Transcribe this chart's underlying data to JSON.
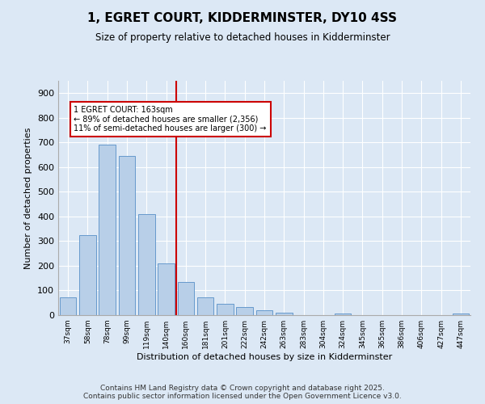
{
  "title": "1, EGRET COURT, KIDDERMINSTER, DY10 4SS",
  "subtitle": "Size of property relative to detached houses in Kidderminster",
  "xlabel": "Distribution of detached houses by size in Kidderminster",
  "ylabel": "Number of detached properties",
  "categories": [
    "37sqm",
    "58sqm",
    "78sqm",
    "99sqm",
    "119sqm",
    "140sqm",
    "160sqm",
    "181sqm",
    "201sqm",
    "222sqm",
    "242sqm",
    "263sqm",
    "283sqm",
    "304sqm",
    "324sqm",
    "345sqm",
    "365sqm",
    "386sqm",
    "406sqm",
    "427sqm",
    "447sqm"
  ],
  "values": [
    72,
    325,
    690,
    645,
    410,
    210,
    135,
    72,
    46,
    32,
    20,
    10,
    0,
    0,
    5,
    0,
    0,
    0,
    0,
    0,
    5
  ],
  "bar_color": "#b8cfe8",
  "bar_edge_color": "#6699cc",
  "vline_color": "#cc0000",
  "annotation_text": "1 EGRET COURT: 163sqm\n← 89% of detached houses are smaller (2,356)\n11% of semi-detached houses are larger (300) →",
  "annotation_box_color": "#ffffff",
  "annotation_box_edge": "#cc0000",
  "bg_color": "#dce8f5",
  "plot_bg_color": "#dce8f5",
  "grid_color": "#ffffff",
  "footer": "Contains HM Land Registry data © Crown copyright and database right 2025.\nContains public sector information licensed under the Open Government Licence v3.0.",
  "ylim": [
    0,
    950
  ],
  "yticks": [
    0,
    100,
    200,
    300,
    400,
    500,
    600,
    700,
    800,
    900
  ]
}
